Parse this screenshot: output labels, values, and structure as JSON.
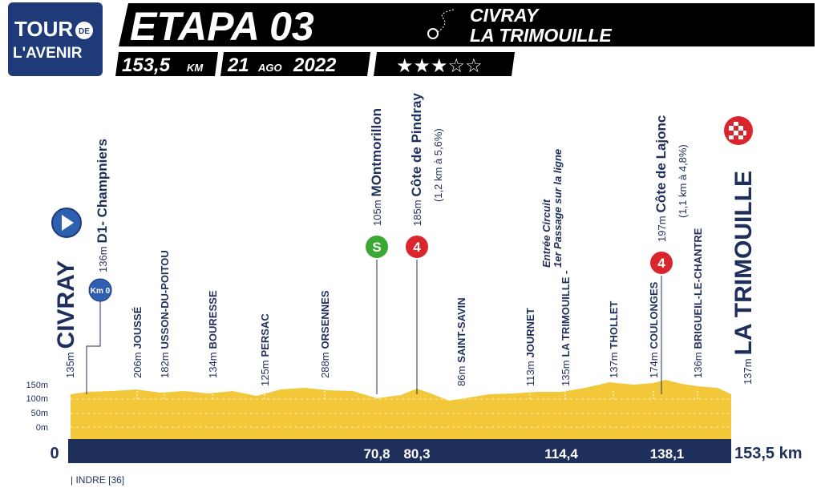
{
  "logo": {
    "line1": "TOUR",
    "de": "DE",
    "line2": "L'AVENIR"
  },
  "header": {
    "stage": "ETAPA 03",
    "start": "CIVRAY",
    "finish": "LA TRIMOUILLE",
    "distance": "153,5",
    "distance_unit": "KM",
    "date_day": "21",
    "date_month": "AGO",
    "date_year": "2022",
    "rating": "★★★☆☆"
  },
  "start": {
    "altitude": "135m",
    "name": "CIVRAY",
    "km0": "Km 0"
  },
  "finish": {
    "altitude": "137m",
    "name": "LA TRIMOUILLE"
  },
  "waypoints": [
    {
      "altitude": "136m",
      "name": "D1- Champniers"
    },
    {
      "altitude": "206m",
      "name": "JOUSSÉ"
    },
    {
      "altitude": "182m",
      "name": "USSON-DU-POITOU"
    },
    {
      "altitude": "134m",
      "name": "BOURESSE"
    },
    {
      "altitude": "125m",
      "name": "PERSAC"
    },
    {
      "altitude": "288m",
      "name": "ORSENNES"
    },
    {
      "altitude": "105m",
      "name": "MOntmorillon",
      "marker": "S"
    },
    {
      "altitude": "185m",
      "name": "Côte de Pindray",
      "detail": "(1,2 km à 5,6%)",
      "marker": "4"
    },
    {
      "altitude": "86m",
      "name": "SAINT-SAVIN"
    },
    {
      "altitude": "113m",
      "name": "JOURNET"
    },
    {
      "altitude": "135m",
      "name": "LA TRIMOUILLE -",
      "note1": "Entrée Circuit",
      "note2": "1er Passage sur la ligne"
    },
    {
      "altitude": "137m",
      "name": "THOLLET"
    },
    {
      "altitude": "174m",
      "name": "COULONGES"
    },
    {
      "altitude": "197m",
      "name": "Côte de Lajonc",
      "detail": "(1,1 km à 4,8%)",
      "marker": "4"
    },
    {
      "altitude": "136m",
      "name": "BRIGUEIL-LE-CHANTRE"
    }
  ],
  "profile": {
    "altitude_labels": [
      "150m",
      "100m",
      "50m",
      "0m"
    ],
    "km_start": "0",
    "km_marks": [
      "70,8",
      "80,3",
      "114,4",
      "138,1"
    ],
    "km_end": "153,5 km",
    "department": "| INDRE [36]"
  }
}
